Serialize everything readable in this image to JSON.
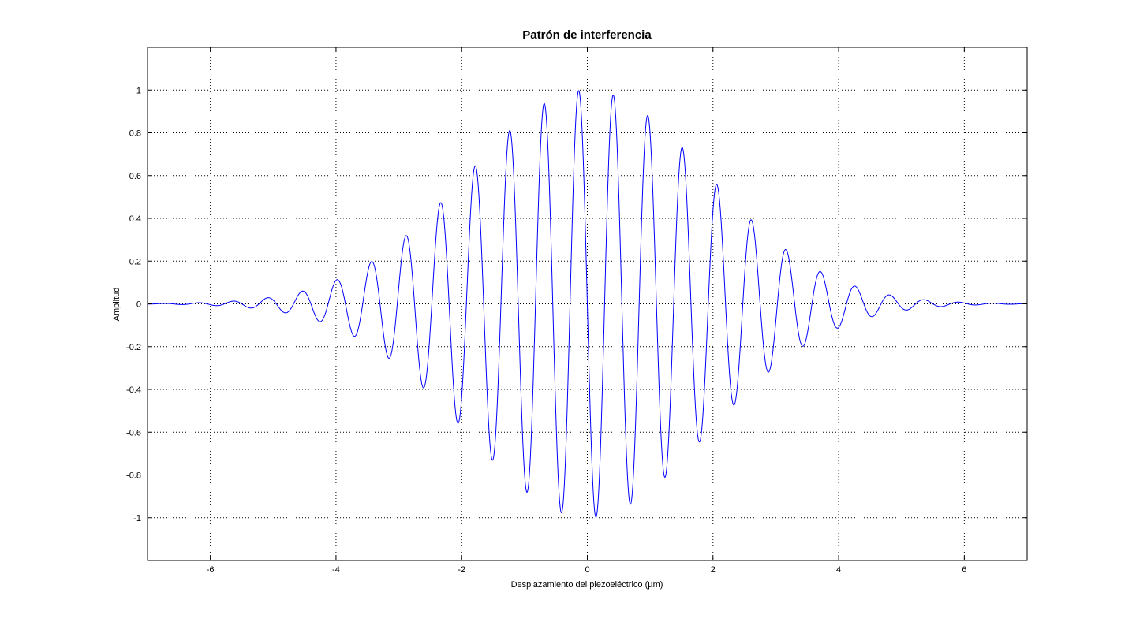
{
  "chart_data": {
    "type": "line",
    "title": "Patrón de interferencia",
    "xlabel": "Desplazamiento del piezoeléctrico (µm)",
    "ylabel": "Amplitud",
    "xlim": [
      -7,
      7
    ],
    "ylim": [
      -1.2,
      1.2
    ],
    "xticks": [
      -6,
      -4,
      -2,
      0,
      2,
      4,
      6
    ],
    "xtick_labels": [
      "-6",
      "-4",
      "-2",
      "0",
      "2",
      "4",
      "6"
    ],
    "yticks": [
      1,
      0.8,
      0.6,
      0.4,
      0.2,
      0,
      -0.2,
      -0.4,
      -0.6,
      -0.8,
      -1
    ],
    "ytick_labels": [
      "1",
      "0.8",
      "0.6",
      "0.4",
      "0.2",
      "0",
      "-0.2",
      "-0.4",
      "-0.6",
      "-0.8",
      "-1"
    ],
    "grid": true,
    "series": [
      {
        "color": "#0000ff",
        "function": "-exp(-(x/2.7)^2) * sin(2*pi*x/0.55)",
        "x_range": [
          -7,
          7
        ]
      }
    ]
  }
}
